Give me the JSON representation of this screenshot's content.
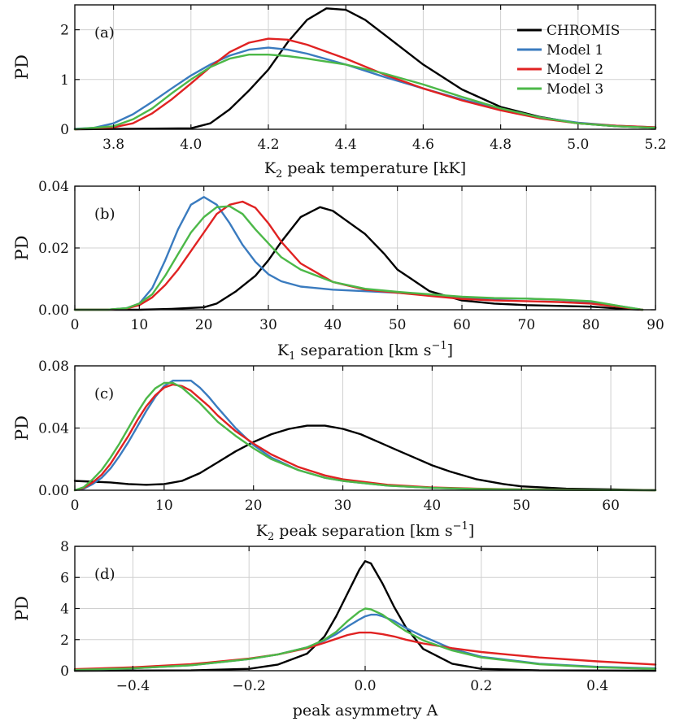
{
  "colors": {
    "CHROMIS": "#000000",
    "Model 1": "#3a7bbf",
    "Model 2": "#e02222",
    "Model 3": "#4cb848"
  },
  "chart_data": [
    {
      "type": "line",
      "panel_label": "(a)",
      "ylabel": "PD",
      "xlabel_main": "K",
      "xlabel_sub": "2",
      "xlabel_rest": " peak temperature [kK]",
      "xlim": [
        3.7,
        5.2
      ],
      "ylim": [
        0,
        2.5
      ],
      "xticks": [
        3.8,
        4.0,
        4.2,
        4.4,
        4.6,
        4.8,
        5.0,
        5.2
      ],
      "xtick_labels": [
        "3.8",
        "4.0",
        "4.2",
        "4.4",
        "4.6",
        "4.8",
        "5.0",
        "5.2"
      ],
      "yticks": [
        0,
        1,
        2
      ],
      "ytick_labels": [
        "0",
        "1",
        "2"
      ],
      "legend": [
        "CHROMIS",
        "Model 1",
        "Model 2",
        "Model 3"
      ],
      "legend_position": "top-right",
      "series": [
        {
          "name": "CHROMIS",
          "x": [
            3.7,
            4.0,
            4.05,
            4.1,
            4.15,
            4.2,
            4.25,
            4.3,
            4.35,
            4.4,
            4.45,
            4.5,
            4.6,
            4.7,
            4.8,
            4.9,
            5.0,
            5.1,
            5.2
          ],
          "y": [
            0,
            0.02,
            0.12,
            0.4,
            0.78,
            1.2,
            1.75,
            2.2,
            2.43,
            2.4,
            2.2,
            1.9,
            1.3,
            0.8,
            0.45,
            0.25,
            0.12,
            0.06,
            0.03
          ]
        },
        {
          "name": "Model 1",
          "x": [
            3.7,
            3.75,
            3.8,
            3.85,
            3.9,
            3.95,
            4.0,
            4.05,
            4.1,
            4.15,
            4.2,
            4.25,
            4.3,
            4.4,
            4.5,
            4.6,
            4.7,
            4.8,
            4.9,
            5.0,
            5.1,
            5.2
          ],
          "y": [
            0.01,
            0.03,
            0.12,
            0.3,
            0.55,
            0.82,
            1.08,
            1.3,
            1.48,
            1.6,
            1.64,
            1.6,
            1.52,
            1.3,
            1.05,
            0.82,
            0.6,
            0.4,
            0.24,
            0.13,
            0.07,
            0.04
          ]
        },
        {
          "name": "Model 2",
          "x": [
            3.7,
            3.8,
            3.85,
            3.9,
            3.95,
            4.0,
            4.05,
            4.1,
            4.15,
            4.2,
            4.25,
            4.3,
            4.4,
            4.5,
            4.6,
            4.7,
            4.8,
            4.9,
            5.0,
            5.1,
            5.2
          ],
          "y": [
            0,
            0.04,
            0.12,
            0.32,
            0.6,
            0.92,
            1.25,
            1.55,
            1.74,
            1.82,
            1.8,
            1.7,
            1.42,
            1.1,
            0.82,
            0.58,
            0.38,
            0.22,
            0.12,
            0.07,
            0.04
          ]
        },
        {
          "name": "Model 3",
          "x": [
            3.7,
            3.8,
            3.85,
            3.9,
            3.95,
            4.0,
            4.05,
            4.1,
            4.15,
            4.2,
            4.25,
            4.3,
            4.4,
            4.5,
            4.6,
            4.7,
            4.8,
            4.9,
            5.0,
            5.1,
            5.2
          ],
          "y": [
            0,
            0.06,
            0.2,
            0.42,
            0.72,
            1.0,
            1.25,
            1.42,
            1.5,
            1.5,
            1.47,
            1.42,
            1.3,
            1.12,
            0.9,
            0.65,
            0.42,
            0.24,
            0.12,
            0.06,
            0.03
          ]
        }
      ]
    },
    {
      "type": "line",
      "panel_label": "(b)",
      "ylabel": "PD",
      "xlabel_main": "K",
      "xlabel_sub": "1",
      "xlabel_rest": " separation [km s",
      "xlabel_sup": "−1",
      "xlabel_end": "]",
      "xlim": [
        0,
        90
      ],
      "ylim": [
        0,
        0.04
      ],
      "xticks": [
        0,
        10,
        20,
        30,
        40,
        50,
        60,
        70,
        80,
        90
      ],
      "xtick_labels": [
        "0",
        "10",
        "20",
        "30",
        "40",
        "50",
        "60",
        "70",
        "80",
        "90"
      ],
      "yticks": [
        0,
        0.02,
        0.04
      ],
      "ytick_labels": [
        "0.00",
        "0.02",
        "0.04"
      ],
      "series": [
        {
          "name": "CHROMIS",
          "x": [
            0,
            10,
            15,
            20,
            22,
            25,
            28,
            30,
            32,
            35,
            38,
            40,
            42,
            45,
            48,
            50,
            55,
            60,
            65,
            70,
            80,
            85,
            88
          ],
          "y": [
            0,
            0,
            0.0003,
            0.0008,
            0.002,
            0.006,
            0.011,
            0.016,
            0.022,
            0.03,
            0.0332,
            0.032,
            0.029,
            0.0245,
            0.018,
            0.013,
            0.006,
            0.003,
            0.002,
            0.0015,
            0.001,
            0.0003,
            0
          ]
        },
        {
          "name": "Model 1",
          "x": [
            0,
            5,
            8,
            10,
            12,
            14,
            16,
            18,
            20,
            22,
            24,
            26,
            28,
            30,
            32,
            35,
            40,
            45,
            50,
            55,
            60,
            65,
            70,
            75,
            80,
            85,
            88
          ],
          "y": [
            0,
            0,
            0.0005,
            0.002,
            0.007,
            0.016,
            0.026,
            0.034,
            0.0365,
            0.034,
            0.028,
            0.021,
            0.0155,
            0.0115,
            0.0092,
            0.0075,
            0.0065,
            0.006,
            0.0055,
            0.0048,
            0.004,
            0.0036,
            0.0036,
            0.0032,
            0.0025,
            0.001,
            0
          ]
        },
        {
          "name": "Model 2",
          "x": [
            0,
            5,
            8,
            10,
            12,
            14,
            16,
            18,
            20,
            22,
            24,
            26,
            28,
            30,
            32,
            35,
            40,
            45,
            50,
            55,
            60,
            65,
            70,
            75,
            80,
            85,
            88
          ],
          "y": [
            0,
            0,
            0.0004,
            0.0015,
            0.004,
            0.008,
            0.013,
            0.019,
            0.025,
            0.031,
            0.034,
            0.035,
            0.033,
            0.028,
            0.022,
            0.015,
            0.009,
            0.0065,
            0.0055,
            0.0045,
            0.0035,
            0.003,
            0.0028,
            0.0025,
            0.002,
            0.0008,
            0
          ]
        },
        {
          "name": "Model 3",
          "x": [
            0,
            5,
            8,
            10,
            12,
            14,
            16,
            18,
            20,
            22,
            24,
            26,
            28,
            30,
            32,
            35,
            40,
            45,
            50,
            55,
            60,
            65,
            70,
            75,
            80,
            85,
            88
          ],
          "y": [
            0,
            0,
            0.0005,
            0.002,
            0.005,
            0.011,
            0.018,
            0.025,
            0.03,
            0.0332,
            0.0335,
            0.031,
            0.026,
            0.0215,
            0.017,
            0.013,
            0.009,
            0.0068,
            0.0058,
            0.005,
            0.0042,
            0.0038,
            0.0036,
            0.0033,
            0.0028,
            0.001,
            0
          ]
        }
      ]
    },
    {
      "type": "line",
      "panel_label": "(c)",
      "ylabel": "PD",
      "xlabel_main": "K",
      "xlabel_sub": "2",
      "xlabel_rest": " peak separation [km s",
      "xlabel_sup": "−1",
      "xlabel_end": "]",
      "xlim": [
        0,
        65
      ],
      "ylim": [
        0,
        0.08
      ],
      "xticks": [
        0,
        10,
        20,
        30,
        40,
        50,
        60
      ],
      "xtick_labels": [
        "0",
        "10",
        "20",
        "30",
        "40",
        "50",
        "60"
      ],
      "yticks": [
        0,
        0.04,
        0.08
      ],
      "ytick_labels": [
        "0.00",
        "0.04",
        "0.08"
      ],
      "series": [
        {
          "name": "CHROMIS",
          "x": [
            0,
            2,
            4,
            6,
            8,
            10,
            12,
            14,
            16,
            18,
            20,
            22,
            24,
            26,
            28,
            30,
            32,
            34,
            36,
            38,
            40,
            42,
            45,
            48,
            50,
            55,
            60,
            65
          ],
          "y": [
            0.006,
            0.0055,
            0.005,
            0.004,
            0.0035,
            0.004,
            0.006,
            0.011,
            0.018,
            0.025,
            0.031,
            0.036,
            0.0395,
            0.0415,
            0.0415,
            0.0395,
            0.036,
            0.031,
            0.026,
            0.021,
            0.016,
            0.012,
            0.007,
            0.004,
            0.0025,
            0.001,
            0.0005,
            0
          ]
        },
        {
          "name": "Model 1",
          "x": [
            0,
            1,
            2,
            3,
            4,
            5,
            6,
            7,
            8,
            9,
            10,
            11,
            12,
            13,
            14,
            15,
            16,
            18,
            20,
            22,
            25,
            28,
            30,
            35,
            40,
            45,
            50,
            55,
            60,
            65
          ],
          "y": [
            0,
            0.001,
            0.004,
            0.008,
            0.014,
            0.022,
            0.031,
            0.041,
            0.051,
            0.06,
            0.067,
            0.0705,
            0.0705,
            0.0705,
            0.066,
            0.06,
            0.053,
            0.04,
            0.029,
            0.021,
            0.013,
            0.008,
            0.006,
            0.003,
            0.0015,
            0.0008,
            0.0004,
            0.0002,
            0.0001,
            0
          ]
        },
        {
          "name": "Model 2",
          "x": [
            0,
            1,
            2,
            3,
            4,
            5,
            6,
            7,
            8,
            9,
            10,
            11,
            12,
            13,
            14,
            15,
            16,
            18,
            20,
            22,
            25,
            28,
            30,
            35,
            40,
            45,
            50,
            55,
            60,
            65
          ],
          "y": [
            0,
            0.0015,
            0.005,
            0.01,
            0.017,
            0.026,
            0.035,
            0.045,
            0.054,
            0.061,
            0.066,
            0.068,
            0.067,
            0.064,
            0.059,
            0.054,
            0.048,
            0.038,
            0.03,
            0.023,
            0.015,
            0.0095,
            0.007,
            0.0035,
            0.0018,
            0.001,
            0.0005,
            0.0003,
            0.0001,
            0
          ]
        },
        {
          "name": "Model 3",
          "x": [
            0,
            1,
            2,
            3,
            4,
            5,
            6,
            7,
            8,
            9,
            10,
            11,
            12,
            13,
            14,
            15,
            16,
            18,
            20,
            22,
            25,
            28,
            30,
            35,
            40,
            45,
            50,
            55,
            60,
            65
          ],
          "y": [
            0,
            0.002,
            0.007,
            0.013,
            0.021,
            0.03,
            0.04,
            0.05,
            0.059,
            0.0655,
            0.069,
            0.069,
            0.066,
            0.061,
            0.056,
            0.05,
            0.044,
            0.035,
            0.027,
            0.02,
            0.013,
            0.008,
            0.006,
            0.003,
            0.0015,
            0.0008,
            0.0004,
            0.0002,
            0.0001,
            0
          ]
        }
      ]
    },
    {
      "type": "line",
      "panel_label": "(d)",
      "ylabel": "PD",
      "xlabel_main": "peak asymmetry A",
      "xlim": [
        -0.5,
        0.5
      ],
      "ylim": [
        0,
        8
      ],
      "xticks": [
        -0.4,
        -0.2,
        0.0,
        0.2,
        0.4
      ],
      "xtick_labels": [
        "−0.4",
        "−0.2",
        "0.0",
        "0.2",
        "0.4"
      ],
      "yticks": [
        0,
        2,
        4,
        6,
        8
      ],
      "ytick_labels": [
        "0",
        "2",
        "4",
        "6",
        "8"
      ],
      "series": [
        {
          "name": "CHROMIS",
          "x": [
            -0.5,
            -0.3,
            -0.2,
            -0.15,
            -0.1,
            -0.07,
            -0.05,
            -0.03,
            -0.01,
            0.0,
            0.01,
            0.03,
            0.05,
            0.07,
            0.1,
            0.15,
            0.2,
            0.3,
            0.5
          ],
          "y": [
            0,
            0.02,
            0.12,
            0.4,
            1.1,
            2.2,
            3.5,
            5.0,
            6.5,
            7.05,
            6.9,
            5.6,
            4.1,
            2.8,
            1.4,
            0.45,
            0.12,
            0.02,
            0
          ]
        },
        {
          "name": "Model 1",
          "x": [
            -0.5,
            -0.4,
            -0.3,
            -0.2,
            -0.15,
            -0.1,
            -0.07,
            -0.05,
            -0.03,
            -0.01,
            0.0,
            0.01,
            0.02,
            0.03,
            0.05,
            0.07,
            0.1,
            0.15,
            0.2,
            0.3,
            0.4,
            0.5
          ],
          "y": [
            0.05,
            0.15,
            0.35,
            0.75,
            1.05,
            1.5,
            1.95,
            2.35,
            2.85,
            3.3,
            3.5,
            3.6,
            3.6,
            3.5,
            3.2,
            2.75,
            2.2,
            1.4,
            0.9,
            0.45,
            0.25,
            0.15
          ]
        },
        {
          "name": "Model 2",
          "x": [
            -0.5,
            -0.4,
            -0.3,
            -0.2,
            -0.15,
            -0.1,
            -0.07,
            -0.05,
            -0.03,
            -0.01,
            0.0,
            0.01,
            0.03,
            0.05,
            0.07,
            0.1,
            0.15,
            0.2,
            0.3,
            0.4,
            0.5
          ],
          "y": [
            0.1,
            0.22,
            0.42,
            0.78,
            1.05,
            1.45,
            1.8,
            2.05,
            2.3,
            2.45,
            2.45,
            2.45,
            2.35,
            2.2,
            2.0,
            1.75,
            1.45,
            1.2,
            0.85,
            0.6,
            0.4
          ]
        },
        {
          "name": "Model 3",
          "x": [
            -0.5,
            -0.4,
            -0.3,
            -0.2,
            -0.15,
            -0.1,
            -0.07,
            -0.05,
            -0.03,
            -0.01,
            0.0,
            0.01,
            0.03,
            0.05,
            0.07,
            0.1,
            0.15,
            0.2,
            0.3,
            0.4,
            0.5
          ],
          "y": [
            0.05,
            0.15,
            0.35,
            0.75,
            1.05,
            1.5,
            2.0,
            2.5,
            3.2,
            3.8,
            4.0,
            3.95,
            3.6,
            3.05,
            2.55,
            1.95,
            1.3,
            0.85,
            0.42,
            0.22,
            0.12
          ]
        }
      ]
    }
  ]
}
